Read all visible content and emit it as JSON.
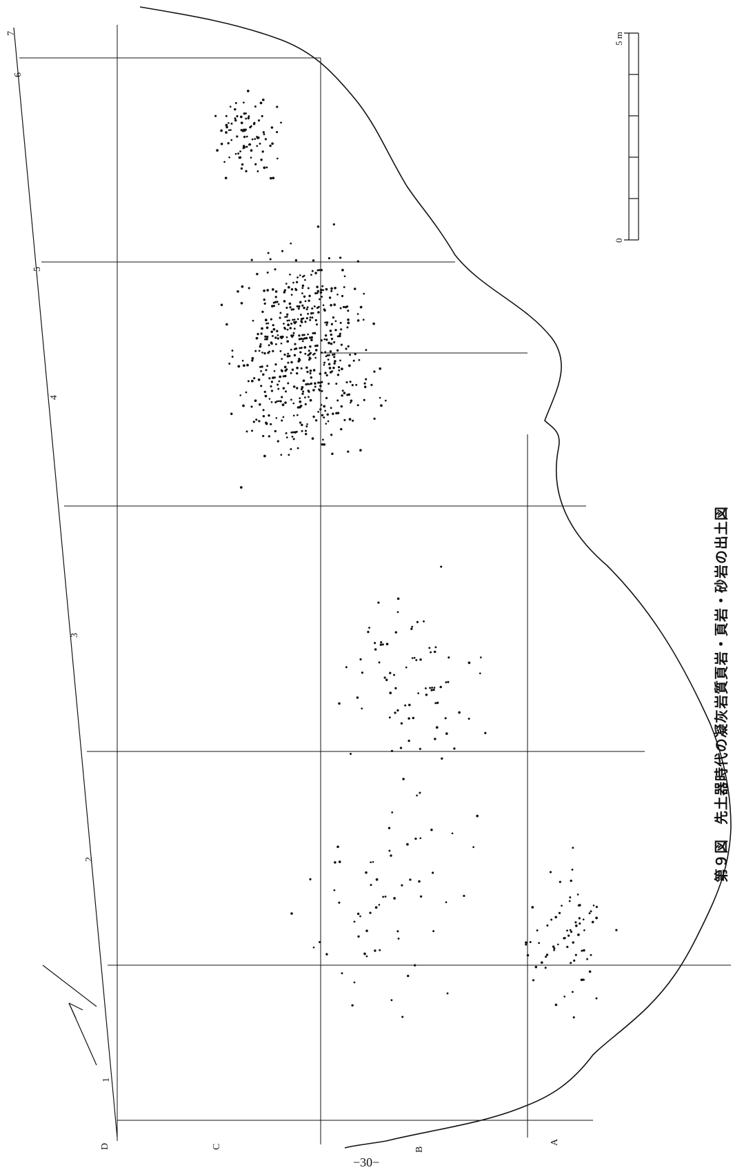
{
  "figure": {
    "caption": "第９図　先土器時代の凝灰岩質頁岩・頁岩・砂岩の出土図",
    "page_number": "−30−"
  },
  "grid": {
    "column_labels": [
      "1",
      "2",
      "3",
      "4",
      "5",
      "6",
      "7"
    ],
    "row_labels": [
      "A",
      "B",
      "C",
      "D"
    ]
  },
  "scale_bar": {
    "label_start": "0",
    "label_end": "5 m"
  },
  "north_arrow": {
    "icon": "north-arrow-icon"
  },
  "artifacts": {
    "marker_icon": "dot-icon",
    "color": "#111111",
    "description_symbol": "•"
  }
}
